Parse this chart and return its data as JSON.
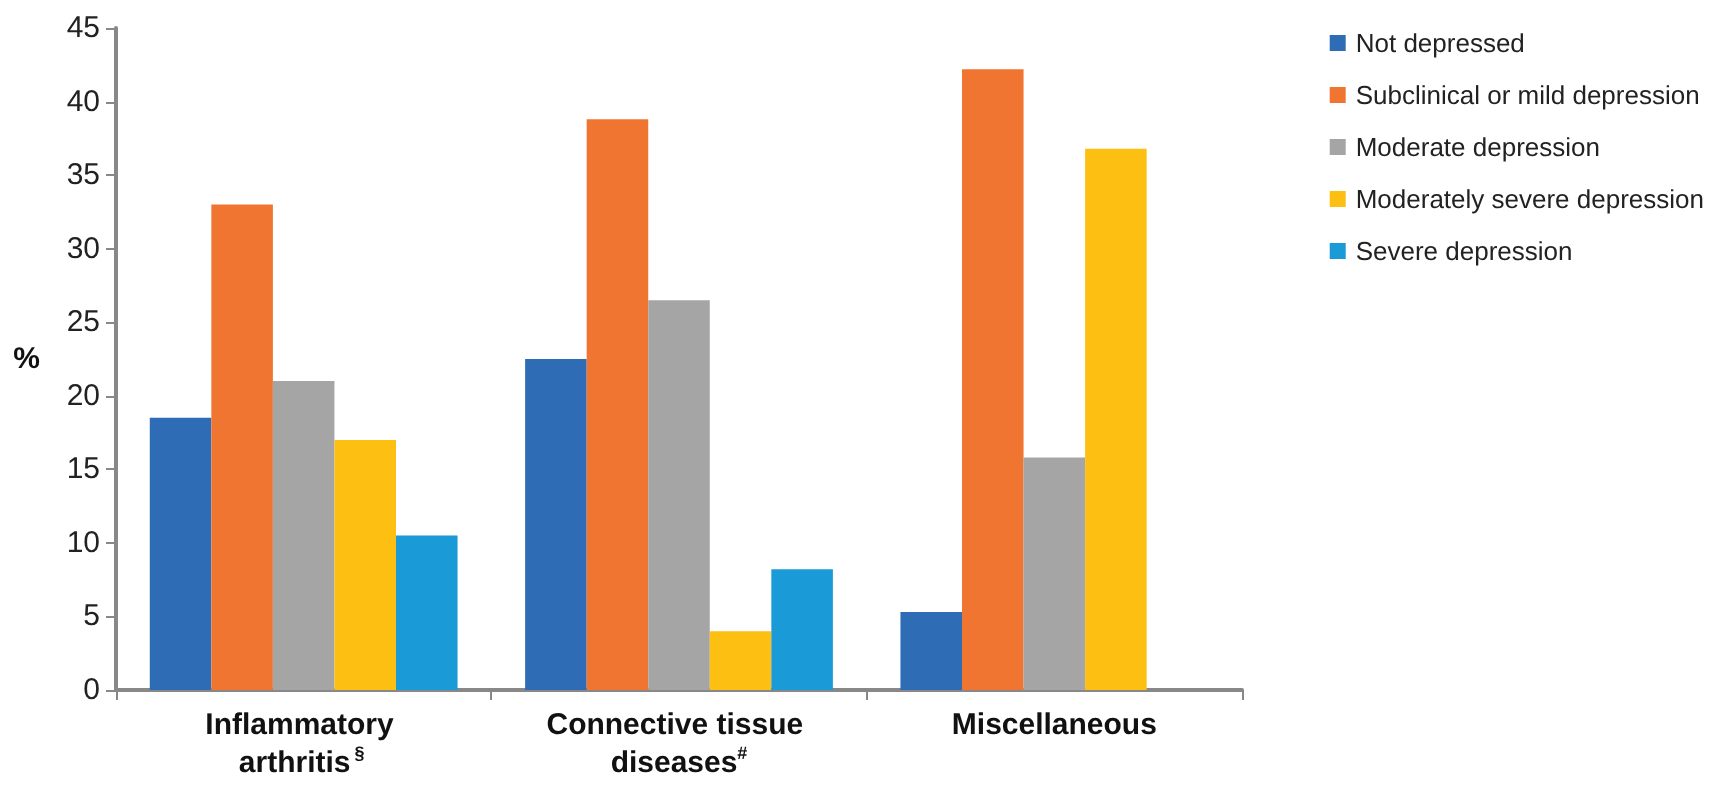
{
  "chart_data": {
    "type": "bar",
    "ylabel": "%",
    "categories": [
      "Inflammatory arthritis$^{§}$",
      "Connective tissue diseases$^{#}$",
      "Miscellaneous"
    ],
    "series": [
      {
        "name": "Not depressed",
        "color": "#2e6db5",
        "values": [
          18.5,
          22.5,
          5.3
        ]
      },
      {
        "name": "Subclinical or mild depression",
        "color": "#f07530",
        "values": [
          33.0,
          38.8,
          42.2
        ]
      },
      {
        "name": "Moderate depression",
        "color": "#a5a5a5",
        "values": [
          21.0,
          26.5,
          15.8
        ]
      },
      {
        "name": "Moderately severe depression",
        "color": "#fdbf12",
        "values": [
          17.0,
          4.0,
          36.8
        ]
      },
      {
        "name": "Severe depression",
        "color": "#1a9ad6",
        "values": [
          10.5,
          8.2,
          0
        ]
      }
    ],
    "ylim": [
      0,
      45
    ],
    "yticks": [
      0,
      5,
      10,
      15,
      20,
      25,
      30,
      35,
      40,
      45
    ],
    "grid": false,
    "legend": "right"
  }
}
